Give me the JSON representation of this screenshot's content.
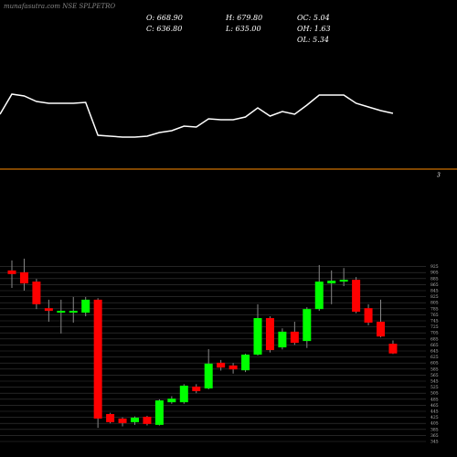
{
  "chart_data": {
    "type": "candlestick",
    "title": "munafasutra.com NSE SPLPETRO",
    "header": [
      "O: 668.90",
      "H: 679.80",
      "OC: 5.04",
      "C: 636.80",
      "L: 635.00",
      "OH: 1.63",
      "OL: 5.34"
    ],
    "reference_label": "3",
    "indicator": {
      "color": "#ffffff",
      "ylim": [
        0,
        150
      ],
      "values": [
        97,
        95,
        89,
        87,
        87,
        87,
        88,
        52,
        51,
        50,
        50,
        51,
        55,
        57,
        62,
        61,
        70,
        69,
        69,
        72,
        82,
        73,
        78,
        75,
        85,
        96,
        96,
        96,
        87,
        83,
        79,
        76
      ]
    },
    "reference_color": "#ff8c00",
    "up_color": "#00ff00",
    "down_color": "#ff0000",
    "ylim": [
      345,
      945
    ],
    "yticks": [
      345,
      365,
      385,
      405,
      425,
      445,
      465,
      485,
      505,
      525,
      545,
      565,
      585,
      605,
      625,
      645,
      665,
      685,
      705,
      725,
      745,
      765,
      785,
      805,
      825,
      845,
      865,
      885,
      905,
      925
    ],
    "grid": true,
    "open": [
      912,
      906,
      875,
      787,
      772,
      772,
      772,
      815,
      436,
      421,
      409,
      427,
      400,
      475,
      475,
      527,
      521,
      606,
      597,
      581,
      633,
      754,
      657,
      709,
      678,
      784,
      869,
      875,
      881,
      787,
      742,
      668.9
    ],
    "high": [
      945,
      951,
      884,
      815,
      815,
      824,
      824,
      820,
      440,
      425,
      428,
      430,
      485,
      495,
      535,
      535,
      651,
      615,
      605,
      636,
      800,
      760,
      720,
      742,
      790,
      930,
      912,
      920,
      890,
      800,
      815,
      679.8
    ],
    "low": [
      854,
      845,
      784,
      742,
      703,
      739,
      760,
      390,
      405,
      395,
      400,
      398,
      398,
      470,
      470,
      505,
      518,
      580,
      570,
      575,
      630,
      640,
      650,
      665,
      655,
      778,
      800,
      860,
      770,
      730,
      690,
      635
    ],
    "close": [
      900,
      869,
      800,
      778,
      778,
      778,
      815,
      421,
      409,
      406,
      424,
      403,
      481,
      487,
      530,
      512,
      603,
      590,
      584,
      633,
      754,
      648,
      709,
      672,
      784,
      875,
      878,
      881,
      775,
      739,
      693,
      636.8
    ]
  }
}
